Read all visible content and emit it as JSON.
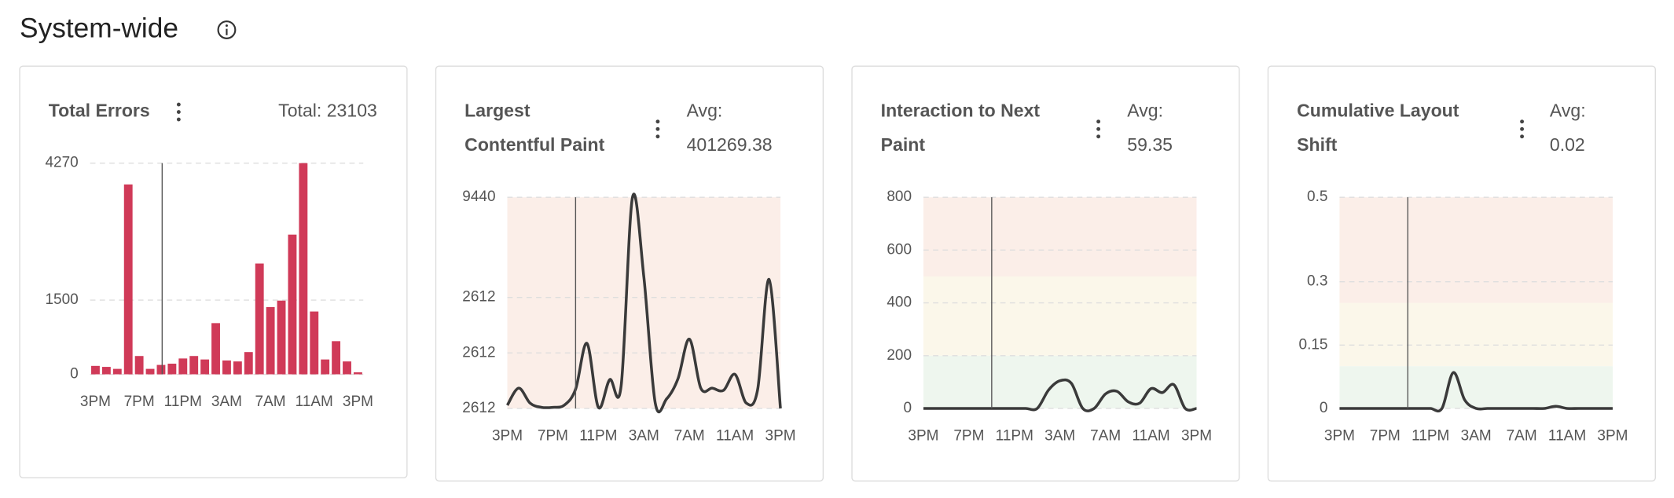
{
  "header": {
    "title": "System-wide"
  },
  "chart_data": [
    {
      "type": "bar",
      "title_lines": [
        "Total Errors"
      ],
      "summary": "Total: 23103",
      "color": "#d03a58",
      "categories": [
        "3PM",
        null,
        null,
        null,
        "7PM",
        null,
        null,
        null,
        "11PM",
        null,
        null,
        null,
        "3AM",
        null,
        null,
        null,
        "7AM",
        null,
        null,
        null,
        "11AM",
        null,
        null,
        null,
        "3PM"
      ],
      "values": [
        170,
        150,
        110,
        3840,
        370,
        110,
        190,
        215,
        320,
        370,
        300,
        1035,
        280,
        260,
        450,
        2240,
        1360,
        1490,
        2825,
        4270,
        1270,
        300,
        670,
        260,
        40
      ],
      "ylim": [
        0,
        4270
      ],
      "yticks": [
        0,
        1500,
        4270
      ],
      "grid": true
    },
    {
      "type": "line",
      "title_lines": [
        "Largest",
        "Contentful Paint"
      ],
      "summary_label": "Avg:",
      "summary_value": 401269.38,
      "color": "#3a3a3a",
      "categories": [
        "3PM",
        null,
        null,
        null,
        "7PM",
        null,
        null,
        null,
        "11PM",
        null,
        null,
        null,
        "3AM",
        null,
        null,
        null,
        "7AM",
        null,
        null,
        null,
        "11AM",
        null,
        null,
        null,
        "3PM"
      ],
      "values": [
        143,
        906,
        238,
        48,
        48,
        143,
        858,
        2908,
        48,
        1287,
        1001,
        9440,
        5864,
        238,
        429,
        1335,
        3099,
        906,
        906,
        810,
        1526,
        238,
        858,
        5769,
        0
      ],
      "ylim": [
        0,
        9440
      ],
      "yticks": [
        {
          "value": 0,
          "label": "2612"
        },
        {
          "value": 2480,
          "label": "2612"
        },
        {
          "value": 4960,
          "label": "2612"
        },
        9440
      ],
      "grid": true,
      "bands": [
        {
          "from": 0,
          "to": 9440,
          "color": "#fbeee8"
        }
      ]
    },
    {
      "type": "line",
      "title_lines": [
        "Interaction to Next",
        "Paint"
      ],
      "summary_label": "Avg:",
      "summary_value": 59.35,
      "color": "#3a3a3a",
      "categories": [
        "3PM",
        null,
        null,
        null,
        "7PM",
        null,
        null,
        null,
        "11PM",
        null,
        null,
        null,
        "3AM",
        null,
        null,
        null,
        "7AM",
        null,
        null,
        null,
        "11AM",
        null,
        null,
        null,
        "3PM"
      ],
      "values": [
        0,
        0,
        0,
        0,
        0,
        0,
        0,
        0,
        0,
        0,
        0,
        70,
        105,
        95,
        0,
        0,
        55,
        65,
        25,
        20,
        75,
        60,
        90,
        0,
        0
      ],
      "ylim": [
        0,
        800
      ],
      "yticks": [
        0,
        200,
        400,
        600,
        800
      ],
      "grid": true,
      "bands": [
        {
          "from": 0,
          "to": 200,
          "color": "#eef6ee"
        },
        {
          "from": 200,
          "to": 500,
          "color": "#fbf7ea"
        },
        {
          "from": 500,
          "to": 800,
          "color": "#fbeee8"
        }
      ]
    },
    {
      "type": "line",
      "title_lines": [
        "Cumulative Layout",
        "Shift"
      ],
      "summary_label": "Avg:",
      "summary_value": 0.02,
      "color": "#3a3a3a",
      "categories": [
        "3PM",
        null,
        null,
        null,
        "7PM",
        null,
        null,
        null,
        "11PM",
        null,
        null,
        null,
        "3AM",
        null,
        null,
        null,
        "7AM",
        null,
        null,
        null,
        "11AM",
        null,
        null,
        null,
        "3PM"
      ],
      "values": [
        0,
        0,
        0,
        0,
        0,
        0,
        0,
        0,
        0,
        0,
        0.085,
        0.02,
        0,
        0,
        0,
        0,
        0,
        0,
        0,
        0.005,
        0,
        0,
        0,
        0,
        0
      ],
      "ylim": [
        0,
        0.5
      ],
      "yticks": [
        0,
        0.15,
        0.3,
        0.5
      ],
      "grid": true,
      "bands": [
        {
          "from": 0,
          "to": 0.1,
          "color": "#eef6ee"
        },
        {
          "from": 0.1,
          "to": 0.25,
          "color": "#fbf7ea"
        },
        {
          "from": 0.25,
          "to": 0.5,
          "color": "#fbeee8"
        }
      ]
    }
  ]
}
